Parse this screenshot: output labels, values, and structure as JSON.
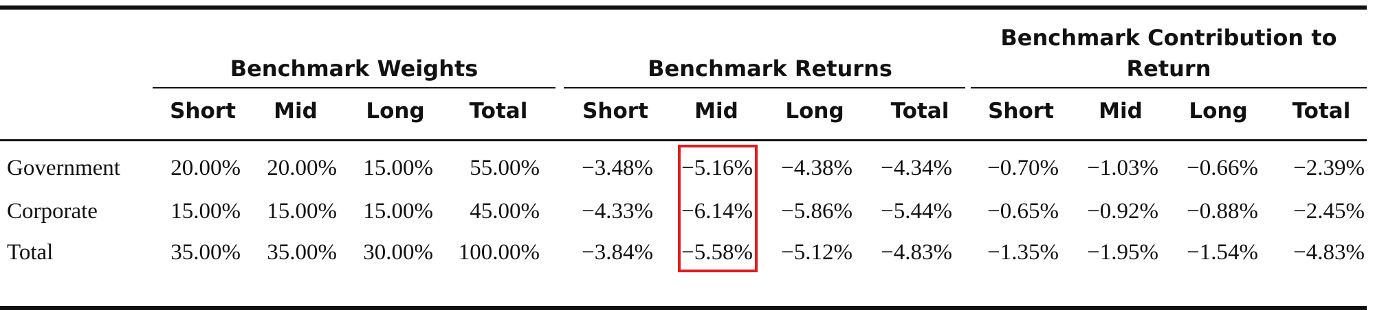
{
  "table": {
    "groups": [
      {
        "title": "Benchmark Weights"
      },
      {
        "title_line1": "Benchmark Returns"
      },
      {
        "title_line1": "Benchmark Contribution to",
        "title_line2": "Return"
      }
    ],
    "subheaders": [
      "Short",
      "Mid",
      "Long",
      "Total",
      "Short",
      "Mid",
      "Long",
      "Total",
      "Short",
      "Mid",
      "Long",
      "Total"
    ],
    "rows": [
      {
        "label": "Government",
        "values": [
          "20.00%",
          "20.00%",
          "15.00%",
          "55.00%",
          "−3.48%",
          "−5.16%",
          "−4.38%",
          "−4.34%",
          "−0.70%",
          "−1.03%",
          "−0.66%",
          "−2.39%"
        ]
      },
      {
        "label": "Corporate",
        "values": [
          "15.00%",
          "15.00%",
          "15.00%",
          "45.00%",
          "−4.33%",
          "−6.14%",
          "−5.86%",
          "−5.44%",
          "−0.65%",
          "−0.92%",
          "−0.88%",
          "−2.45%"
        ]
      },
      {
        "label": "Total",
        "values": [
          "35.00%",
          "35.00%",
          "30.00%",
          "100.00%",
          "−3.84%",
          "−5.58%",
          "−5.12%",
          "−4.83%",
          "−1.35%",
          "−1.95%",
          "−1.54%",
          "−4.83%"
        ]
      }
    ],
    "highlight": {
      "column": "Benchmark Returns — Mid",
      "color": "#e01b1b"
    }
  }
}
